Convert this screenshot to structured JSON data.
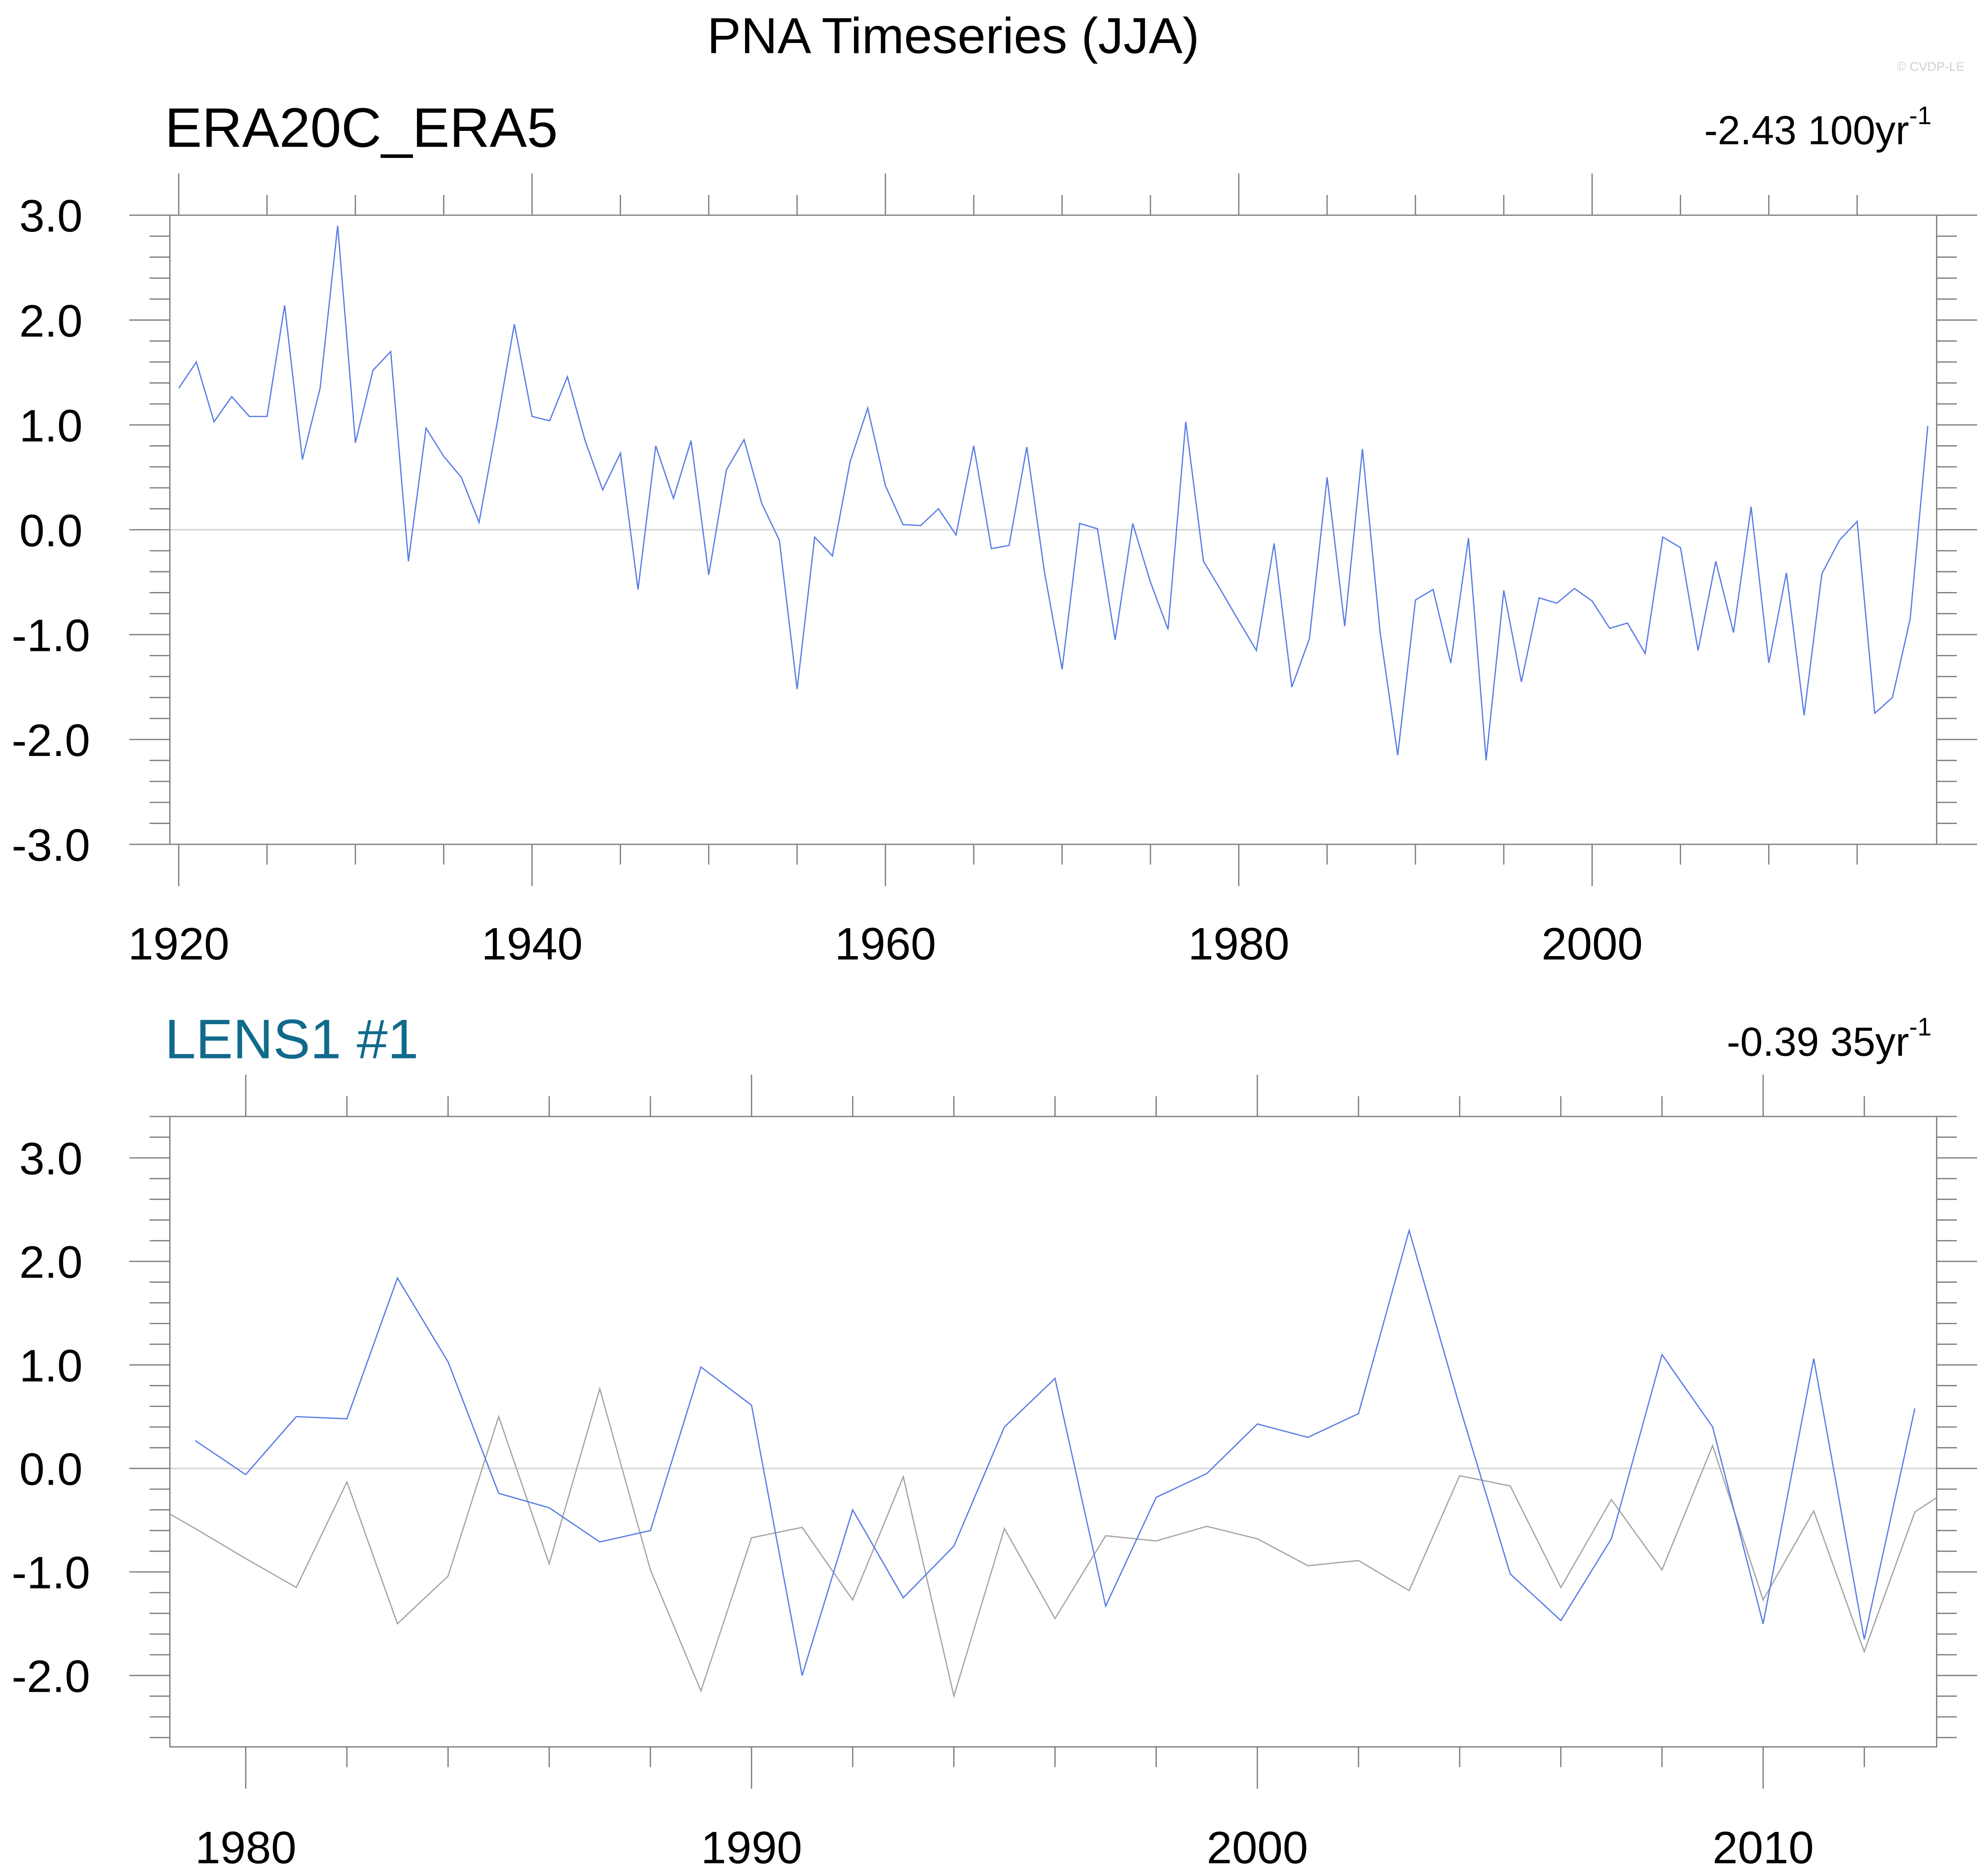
{
  "title": "PNA Timeseries (JJA)",
  "watermark": "© CVDP-LE",
  "colors": {
    "model": "#5b7ee6",
    "obs": "#a6a6a6",
    "zero": "#d6d6d6",
    "axis": "#7f7f7f",
    "lens_title": "#106a8c"
  },
  "chart_data": [
    {
      "type": "line",
      "left_title": "ERA20C_ERA5",
      "right_title": "-2.43 100yr",
      "right_title_sup": "-1",
      "xlim": [
        1919.5,
        2019.5
      ],
      "ylim": [
        -3.0,
        3.0
      ],
      "x_major": 20,
      "x_minor": 5,
      "y_major": 1.0,
      "y_minor": 0.2,
      "x_tick_labels": [
        "1920",
        "1940",
        "1960",
        "1980",
        "2000"
      ],
      "y_tick_labels": [
        "3.0",
        "2.0",
        "1.0",
        "0.0",
        "-1.0",
        "-2.0",
        "-3.0"
      ],
      "series": [
        {
          "name": "ERA20C_ERA5",
          "color_key": "model",
          "x_start": 1920,
          "values": [
            1.35,
            1.6,
            1.03,
            1.27,
            1.08,
            1.08,
            2.14,
            0.67,
            1.35,
            2.9,
            0.83,
            1.52,
            1.7,
            -0.3,
            0.97,
            0.7,
            0.5,
            0.07,
            1.0,
            1.96,
            1.08,
            1.04,
            1.46,
            0.85,
            0.38,
            0.73,
            -0.57,
            0.8,
            0.3,
            0.85,
            -0.43,
            0.57,
            0.86,
            0.25,
            -0.1,
            -1.52,
            -0.07,
            -0.25,
            0.65,
            1.16,
            0.42,
            0.05,
            0.04,
            0.2,
            -0.05,
            0.8,
            -0.18,
            -0.15,
            0.79,
            -0.4,
            -1.33,
            0.06,
            0.01,
            -1.05,
            0.06,
            -0.5,
            -0.95,
            1.03,
            -0.3,
            -0.58,
            -0.87,
            -1.15,
            -0.13,
            -1.5,
            -1.04,
            0.5,
            -0.92,
            0.77,
            -0.98,
            -2.15,
            -0.67,
            -0.57,
            -1.27,
            -0.08,
            -2.2,
            -0.58,
            -1.45,
            -0.65,
            -0.7,
            -0.56,
            -0.68,
            -0.94,
            -0.89,
            -1.18,
            -0.07,
            -0.17,
            -1.15,
            -0.3,
            -0.98,
            0.22,
            -1.27,
            -0.41,
            -1.77,
            -0.42,
            -0.1,
            0.08,
            -1.75,
            -1.6,
            -0.85,
            0.99
          ]
        }
      ]
    },
    {
      "type": "line",
      "left_title": "LENS1 #1",
      "right_title": "-0.39 35yr",
      "right_title_sup": "-1",
      "xlim": [
        1978.5,
        2013.43
      ],
      "ylim": [
        -2.69,
        3.4
      ],
      "x_major": 10,
      "x_minor": 2,
      "y_major": 1.0,
      "y_minor": 0.2,
      "x_tick_labels": [
        "1980",
        "1990",
        "2000",
        "2010"
      ],
      "y_tick_labels": [
        "3.0",
        "2.0",
        "1.0",
        "0.0",
        "-1.0",
        "-2.0"
      ],
      "series": [
        {
          "name": "ERA20C_ERA5",
          "color_key": "obs",
          "x_start": 1978,
          "values": [
            -0.3,
            -0.58,
            -0.87,
            -1.15,
            -0.13,
            -1.5,
            -1.04,
            0.5,
            -0.92,
            0.77,
            -0.98,
            -2.15,
            -0.67,
            -0.57,
            -1.27,
            -0.08,
            -2.2,
            -0.58,
            -1.45,
            -0.65,
            -0.7,
            -0.56,
            -0.68,
            -0.94,
            -0.89,
            -1.18,
            -0.07,
            -0.17,
            -1.15,
            -0.3,
            -0.98,
            0.22,
            -1.27,
            -0.41,
            -1.77,
            -0.42,
            -0.1
          ]
        },
        {
          "name": "LENS1 #1",
          "color_key": "model",
          "x_start": 1979,
          "values": [
            0.27,
            -0.06,
            0.5,
            0.48,
            1.84,
            1.03,
            -0.24,
            -0.38,
            -0.71,
            -0.6,
            0.98,
            0.61,
            -2.0,
            -0.4,
            -1.25,
            -0.75,
            0.4,
            0.87,
            -1.33,
            -0.28,
            -0.05,
            0.43,
            0.3,
            0.53,
            2.3,
            0.6,
            -1.02,
            -1.47,
            -0.68,
            1.1,
            0.4,
            -1.5,
            1.06,
            -1.65,
            0.58
          ]
        }
      ]
    }
  ]
}
